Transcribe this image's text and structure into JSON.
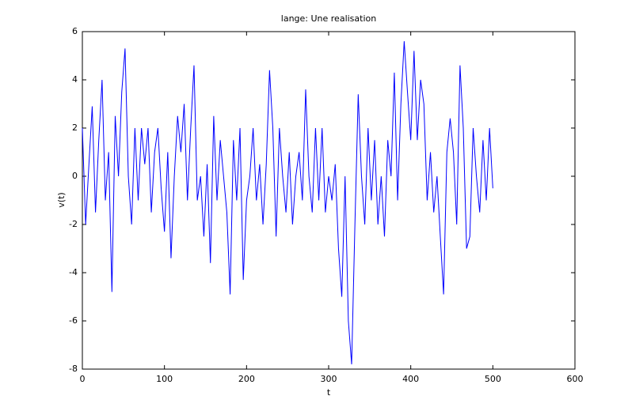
{
  "chart_data": {
    "type": "line",
    "title": "lange:     Une realisation",
    "xlabel": "t",
    "ylabel": "v(t)",
    "x": [
      0,
      4,
      8,
      12,
      16,
      20,
      24,
      28,
      32,
      36,
      40,
      44,
      48,
      52,
      56,
      60,
      64,
      68,
      72,
      76,
      80,
      84,
      88,
      92,
      96,
      100,
      104,
      108,
      112,
      116,
      120,
      124,
      128,
      132,
      136,
      140,
      144,
      148,
      152,
      156,
      160,
      164,
      168,
      172,
      176,
      180,
      184,
      188,
      192,
      196,
      200,
      204,
      208,
      212,
      216,
      220,
      224,
      228,
      232,
      236,
      240,
      244,
      248,
      252,
      256,
      260,
      264,
      268,
      272,
      276,
      280,
      284,
      288,
      292,
      296,
      300,
      304,
      308,
      312,
      316,
      320,
      324,
      328,
      332,
      336,
      340,
      344,
      348,
      352,
      356,
      360,
      364,
      368,
      372,
      376,
      380,
      384,
      388,
      392,
      396,
      400,
      404,
      408,
      412,
      416,
      420,
      424,
      428,
      432,
      436,
      440,
      444,
      448,
      452,
      456,
      460,
      464,
      468,
      472,
      476,
      480,
      484,
      488,
      492,
      496,
      500
    ],
    "series": [
      {
        "name": "v(t)",
        "color": "#0000ff",
        "values": [
          2,
          -2,
          0.5,
          2.9,
          -1.5,
          1.5,
          4,
          -1,
          1,
          -4.8,
          2.5,
          0,
          3.5,
          5.3,
          0,
          -2,
          2,
          -1,
          2,
          0.5,
          2,
          -1.5,
          1,
          2,
          -0.5,
          -2.3,
          1,
          -3.4,
          0,
          2.5,
          1,
          3,
          -1,
          2,
          4.6,
          -1,
          0,
          -2.5,
          0.5,
          -3.6,
          2.5,
          -1,
          1.5,
          0,
          -1.5,
          -4.9,
          1.5,
          -1,
          2,
          -4.3,
          -1,
          0,
          2,
          -1,
          0.5,
          -2,
          0.5,
          4.4,
          2,
          -2.5,
          2,
          0,
          -1.5,
          1,
          -2,
          0,
          1,
          -1,
          3.6,
          0,
          -1.5,
          2,
          -1,
          2,
          -1.5,
          0,
          -1,
          0.5,
          -3,
          -5,
          0,
          -6,
          -7.8,
          -2,
          3.4,
          0,
          -2,
          2,
          -1,
          1.5,
          -2,
          0,
          -2.5,
          1.5,
          0,
          4.3,
          -1,
          3,
          5.6,
          3.5,
          1.5,
          5.2,
          1.5,
          4,
          3,
          -1,
          1,
          -1.5,
          0,
          -2.5,
          -4.9,
          1,
          2.4,
          1,
          -2,
          4.6,
          2,
          -3,
          -2.5,
          2,
          0,
          -1.5,
          1.5,
          -1,
          2,
          -0.5
        ]
      }
    ],
    "xlim": [
      0,
      600
    ],
    "ylim": [
      -8,
      6
    ],
    "xticks": [
      0,
      100,
      200,
      300,
      400,
      500,
      600
    ],
    "yticks": [
      -8,
      -6,
      -4,
      -2,
      0,
      2,
      4,
      6
    ]
  }
}
